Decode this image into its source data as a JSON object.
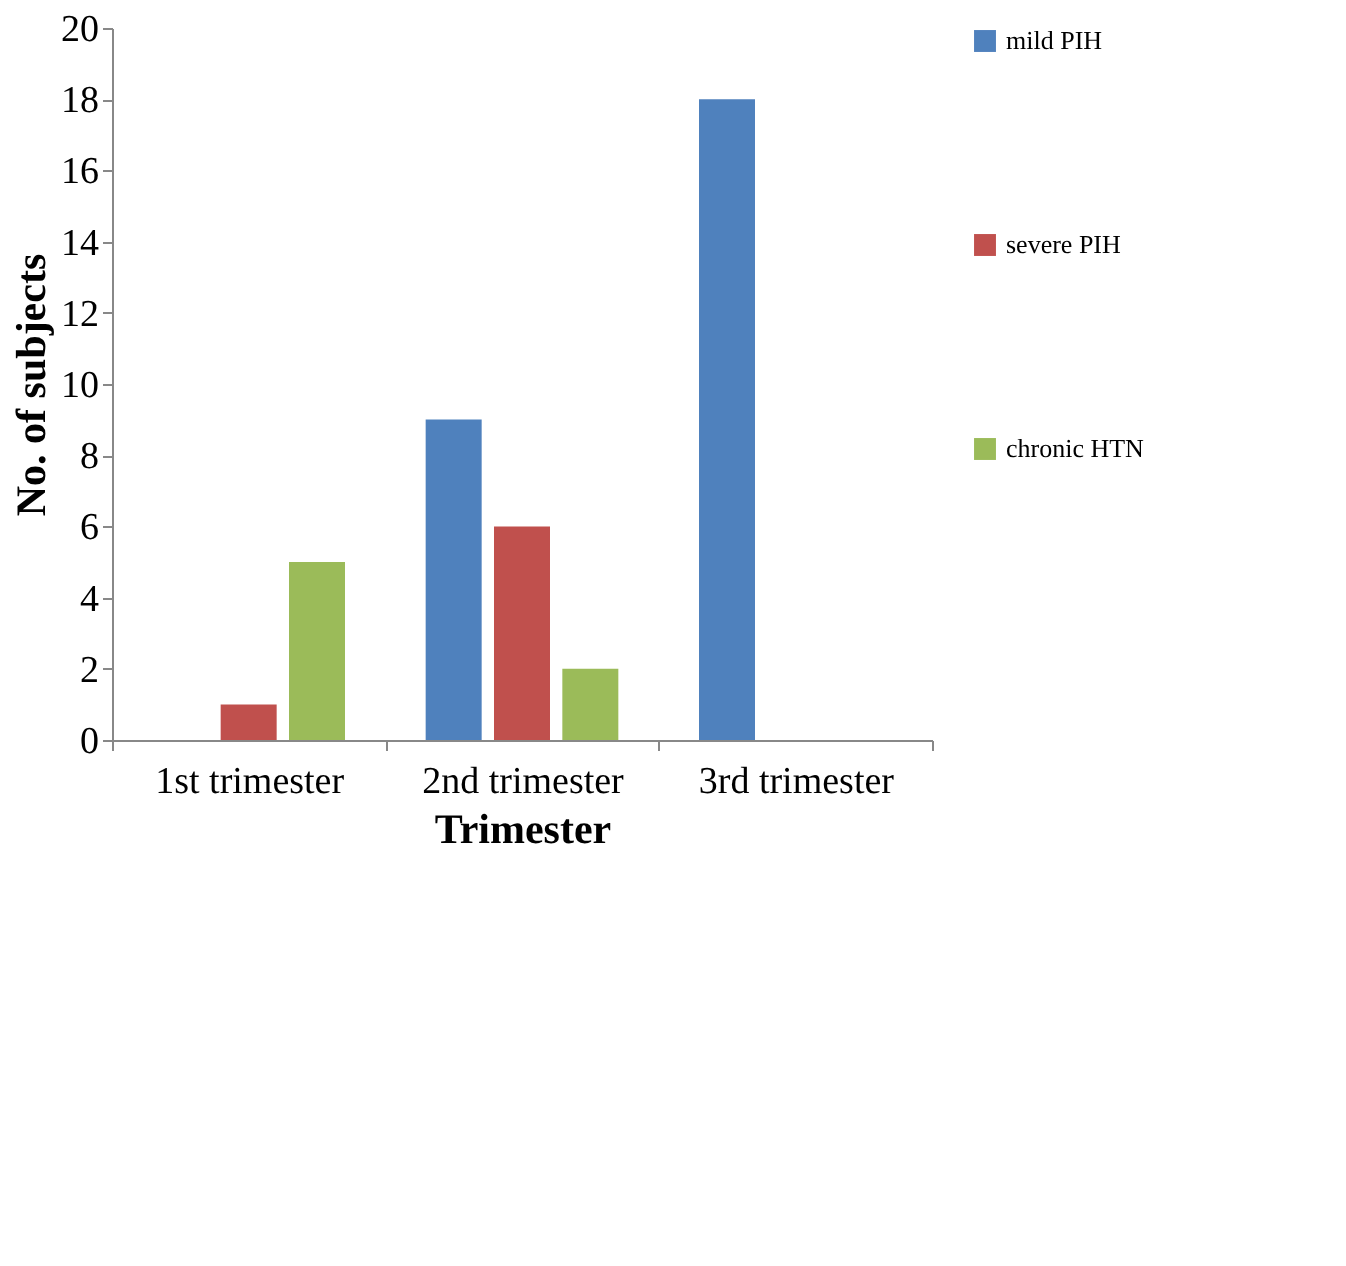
{
  "chart_data": {
    "type": "bar",
    "xlabel": "Trimester",
    "ylabel": "No. of subjects",
    "categories": [
      "1st trimester",
      "2nd trimester",
      "3rd trimester"
    ],
    "series": [
      {
        "name": "mild PIH",
        "color": "#4f81bd",
        "values": [
          0,
          9,
          18
        ]
      },
      {
        "name": "severe PIH",
        "color": "#c0504d",
        "values": [
          1,
          6,
          0
        ]
      },
      {
        "name": "chronic HTN",
        "color": "#9bbb59",
        "values": [
          5,
          2,
          0
        ]
      }
    ],
    "ylim": [
      0,
      20
    ],
    "yticks": [
      0,
      2,
      4,
      6,
      8,
      10,
      12,
      14,
      16,
      18,
      20
    ],
    "grid": false,
    "legend": "right"
  }
}
